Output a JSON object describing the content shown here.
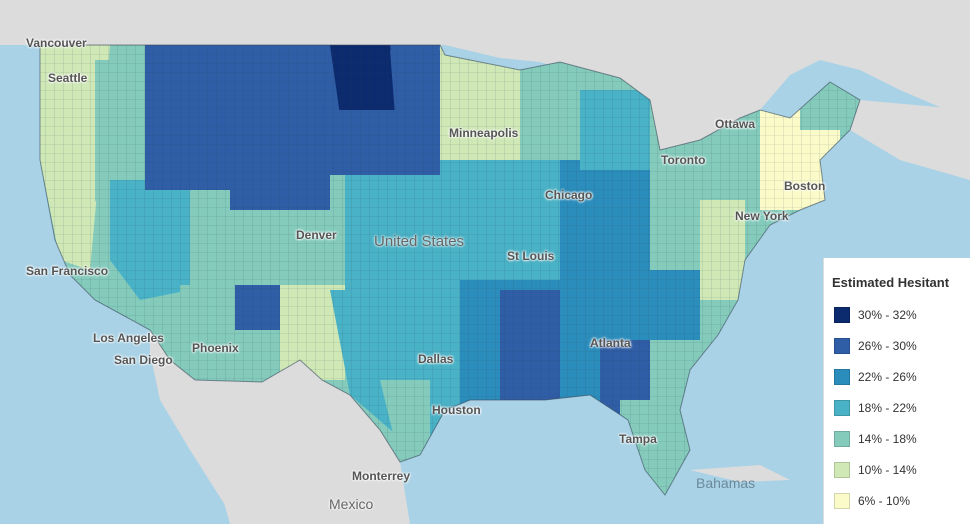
{
  "map": {
    "cities": [
      {
        "key": "vancouver",
        "name": "Vancouver"
      },
      {
        "key": "seattle",
        "name": "Seattle"
      },
      {
        "key": "san_francisco",
        "name": "San Francisco"
      },
      {
        "key": "los_angeles",
        "name": "Los Angeles"
      },
      {
        "key": "san_diego",
        "name": "San Diego"
      },
      {
        "key": "phoenix",
        "name": "Phoenix"
      },
      {
        "key": "denver",
        "name": "Denver"
      },
      {
        "key": "dallas",
        "name": "Dallas"
      },
      {
        "key": "houston",
        "name": "Houston"
      },
      {
        "key": "monterrey",
        "name": "Monterrey"
      },
      {
        "key": "minneapolis",
        "name": "Minneapolis"
      },
      {
        "key": "chicago",
        "name": "Chicago"
      },
      {
        "key": "st_louis",
        "name": "St Louis"
      },
      {
        "key": "atlanta",
        "name": "Atlanta"
      },
      {
        "key": "tampa",
        "name": "Tampa"
      },
      {
        "key": "toronto",
        "name": "Toronto"
      },
      {
        "key": "ottawa",
        "name": "Ottawa"
      },
      {
        "key": "boston",
        "name": "Boston"
      },
      {
        "key": "new_york",
        "name": "New York"
      }
    ],
    "countries": {
      "united_states": "United States",
      "mexico": "Mexico",
      "bahamas": "Bahamas"
    }
  },
  "legend": {
    "title": "Estimated Hesitant",
    "items": [
      {
        "label": "30% - 32%",
        "color": "#0c2a6e"
      },
      {
        "label": "26% - 30%",
        "color": "#2f5da6"
      },
      {
        "label": "22% - 26%",
        "color": "#2b8dbc"
      },
      {
        "label": "18% - 22%",
        "color": "#49b2c6"
      },
      {
        "label": "14% - 18%",
        "color": "#84cbbc"
      },
      {
        "label": "10% - 14%",
        "color": "#cfe8b6"
      },
      {
        "label": "6% - 10%",
        "color": "#fbfbc9"
      }
    ]
  }
}
